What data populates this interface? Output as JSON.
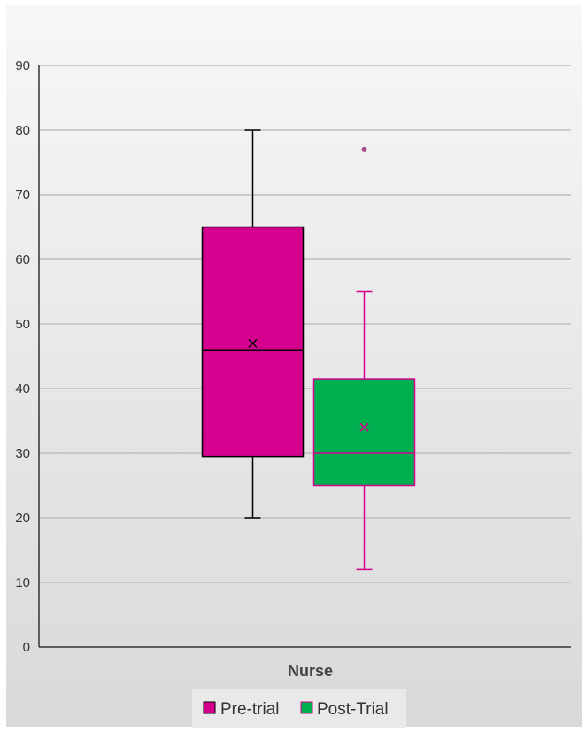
{
  "chart_data": {
    "type": "boxplot",
    "title": "",
    "xlabel": "",
    "ylabel": "",
    "ylim": [
      0,
      90
    ],
    "yticks": [
      0,
      10,
      20,
      30,
      40,
      50,
      60,
      70,
      80,
      90
    ],
    "categories": [
      "Nurse"
    ],
    "grid": true,
    "legend_position": "bottom",
    "series": [
      {
        "name": "Pre-trial",
        "color": "#d6008f",
        "whisker_color": "#000000",
        "min": 20,
        "q1": 29.5,
        "median": 46,
        "q3": 65,
        "max": 80,
        "mean": 47,
        "outliers": []
      },
      {
        "name": "Post-Trial",
        "color": "#00b050",
        "whisker_color": "#d6008f",
        "min": 12,
        "q1": 25,
        "median": 30,
        "q3": 41.5,
        "max": 55,
        "mean": 34,
        "outliers": [
          77
        ]
      }
    ]
  }
}
